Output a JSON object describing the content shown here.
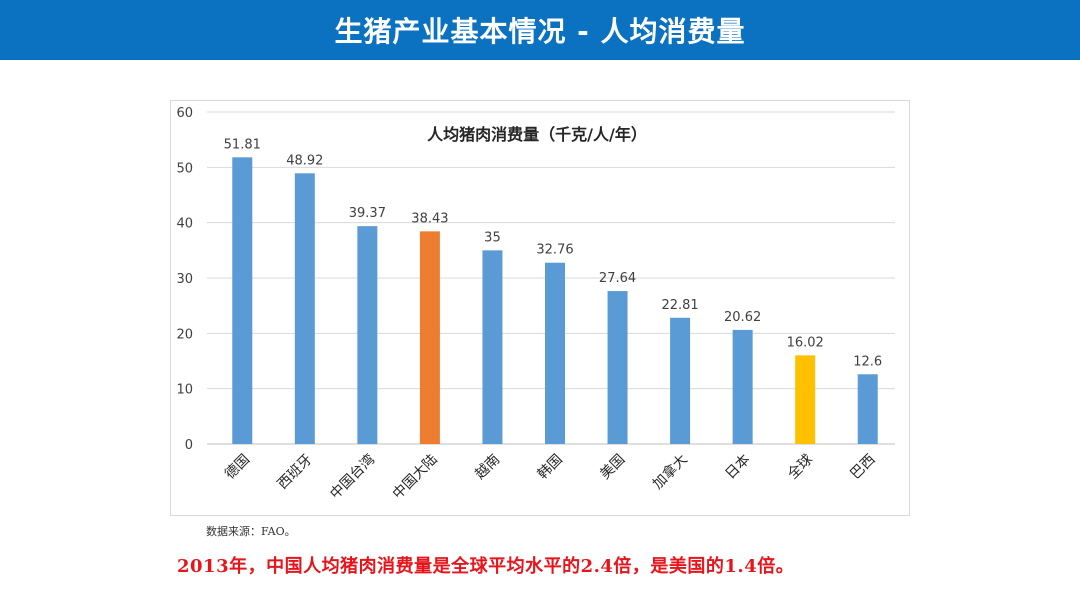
{
  "header": {
    "title": "生猪产业基本情况 - 人均消费量"
  },
  "colors": {
    "header_bg": "#0a72c0",
    "bar_default": "#5b9bd5",
    "bar_highlight_china": "#ed7d31",
    "bar_highlight_world": "#ffc000",
    "conclusion_text": "#e8141b"
  },
  "chart_data": {
    "type": "bar",
    "title": "人均猪肉消费量（千克/人/年）",
    "xlabel": "",
    "ylabel": "",
    "ylim": [
      0,
      60
    ],
    "yticks": [
      0,
      10,
      20,
      30,
      40,
      50,
      60
    ],
    "grid": true,
    "categories": [
      "德国",
      "西班牙",
      "中国台湾",
      "中国大陆",
      "越南",
      "韩国",
      "美国",
      "加拿大",
      "日本",
      "全球",
      "巴西"
    ],
    "values": [
      51.81,
      48.92,
      39.37,
      38.43,
      35,
      32.76,
      27.64,
      22.81,
      20.62,
      16.02,
      12.6
    ],
    "data_labels": [
      "51.81",
      "48.92",
      "39.37",
      "38.43",
      "35",
      "32.76",
      "27.64",
      "22.81",
      "20.62",
      "16.02",
      "12.6"
    ],
    "highlight": {
      "中国大陆": "#ed7d31",
      "全球": "#ffc000"
    }
  },
  "footer": {
    "source": "数据来源：FAO。",
    "conclusion": "2013年，中国人均猪肉消费量是全球平均水平的2.4倍，是美国的1.4倍。"
  }
}
